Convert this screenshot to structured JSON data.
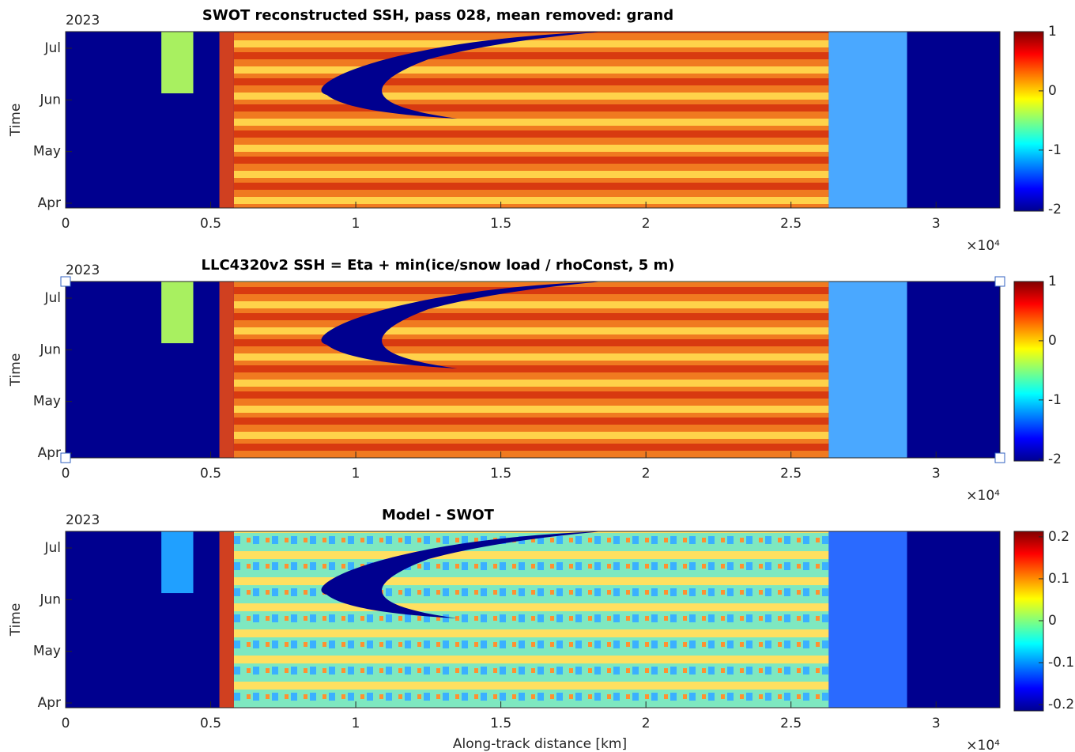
{
  "chart_data": [
    {
      "type": "heatmap",
      "title": "SWOT reconstructed SSH, pass 028, mean removed: grand",
      "year_label": "2023",
      "ylabel": "Time",
      "categories": [
        "Apr",
        "May",
        "Jun",
        "Jul"
      ],
      "xlim": [
        0,
        32200
      ],
      "xticks": [
        0,
        {
          "value": 5000,
          "label": "0.5"
        },
        {
          "value": 10000,
          "label": "1"
        },
        {
          "value": 15000,
          "label": "1.5"
        },
        {
          "value": 20000,
          "label": "2"
        },
        {
          "value": 25000,
          "label": "2.5"
        },
        {
          "value": 30000,
          "label": "3"
        }
      ],
      "x_multiplier": "×10⁴",
      "colormap": "jet",
      "clim": [
        -2.03,
        1
      ],
      "cticks": [
        -2,
        -1,
        0,
        1
      ]
    },
    {
      "type": "heatmap",
      "title": "LLC4320v2 SSH = Eta + min(ice/snow load / rhoConst, 5 m)",
      "year_label": "2023",
      "ylabel": "Time",
      "categories": [
        "Apr",
        "May",
        "Jun",
        "Jul"
      ],
      "xlim": [
        0,
        32200
      ],
      "xticks": [
        0,
        {
          "value": 5000,
          "label": "0.5"
        },
        {
          "value": 10000,
          "label": "1"
        },
        {
          "value": 15000,
          "label": "1.5"
        },
        {
          "value": 20000,
          "label": "2"
        },
        {
          "value": 25000,
          "label": "2.5"
        },
        {
          "value": 30000,
          "label": "3"
        }
      ],
      "x_multiplier": "×10⁴",
      "colormap": "jet",
      "clim": [
        -2.03,
        1
      ],
      "cticks": [
        -2,
        -1,
        0,
        1
      ]
    },
    {
      "type": "heatmap",
      "title": "Model - SWOT",
      "year_label": "2023",
      "ylabel": "Time",
      "xlabel": "Along-track distance [km]",
      "categories": [
        "Apr",
        "May",
        "Jun",
        "Jul"
      ],
      "xlim": [
        0,
        32200
      ],
      "xticks": [
        0,
        {
          "value": 5000,
          "label": "0.5"
        },
        {
          "value": 10000,
          "label": "1"
        },
        {
          "value": 15000,
          "label": "1.5"
        },
        {
          "value": 20000,
          "label": "2"
        },
        {
          "value": 25000,
          "label": "2.5"
        },
        {
          "value": 30000,
          "label": "3"
        }
      ],
      "x_multiplier": "×10⁴",
      "colormap": "jet",
      "clim": [
        -0.215,
        0.213
      ],
      "cticks": [
        -0.2,
        -0.1,
        0,
        0.1,
        0.2
      ]
    }
  ]
}
